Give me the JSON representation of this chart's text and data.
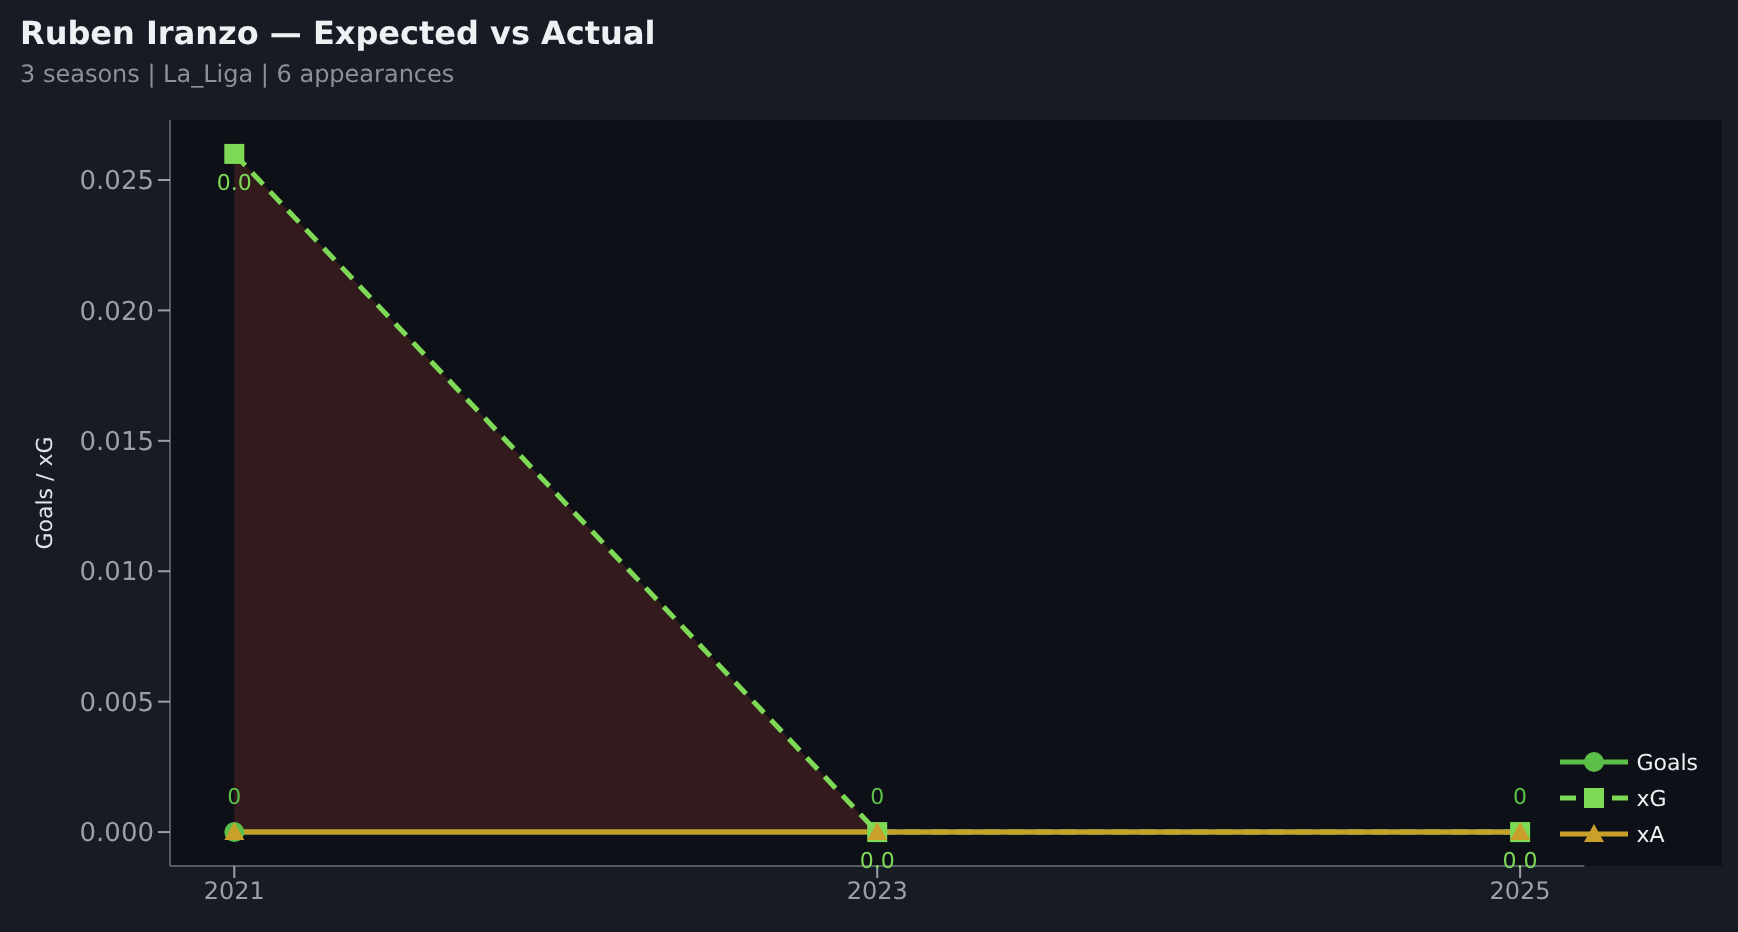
{
  "chart_data": {
    "type": "line",
    "title": "Ruben Iranzo — Expected vs Actual",
    "subtitle": "3 seasons | La_Liga | 6 appearances",
    "ylabel": "Goals / xG",
    "x": [
      2021,
      2023,
      2025
    ],
    "xlim": [
      2020.8,
      2025.2
    ],
    "xticks": [
      2021,
      2023,
      2025
    ],
    "ylim": [
      -0.0013,
      0.0273
    ],
    "yticks": [
      {
        "value": 0,
        "label": "0.000"
      },
      {
        "value": 0.005,
        "label": "0.005"
      },
      {
        "value": 0.01,
        "label": "0.010"
      },
      {
        "value": 0.015,
        "label": "0.015"
      },
      {
        "value": 0.02,
        "label": "0.020"
      },
      {
        "value": 0.025,
        "label": "0.025"
      }
    ],
    "grid": false,
    "legend": "bottom right",
    "series": [
      {
        "name": "Goals",
        "color": "#5cbf4a",
        "values": [
          0,
          0,
          0
        ],
        "marker": "circle",
        "line_style": "solid",
        "value_labels": [
          "0",
          "0",
          "0"
        ]
      },
      {
        "name": "xG",
        "color": "#7ed957",
        "values": [
          0.026,
          0,
          0
        ],
        "marker": "square",
        "line_style": "dashed",
        "value_labels": [
          "0.0",
          "0.0",
          "0.0"
        ],
        "lower": [
          0,
          0,
          0
        ],
        "upper": [
          0.026,
          0,
          0
        ]
      },
      {
        "name": "xA",
        "color": "#c8a02a",
        "values": [
          0,
          0,
          0
        ],
        "marker": "triangle",
        "line_style": "solid"
      }
    ]
  }
}
